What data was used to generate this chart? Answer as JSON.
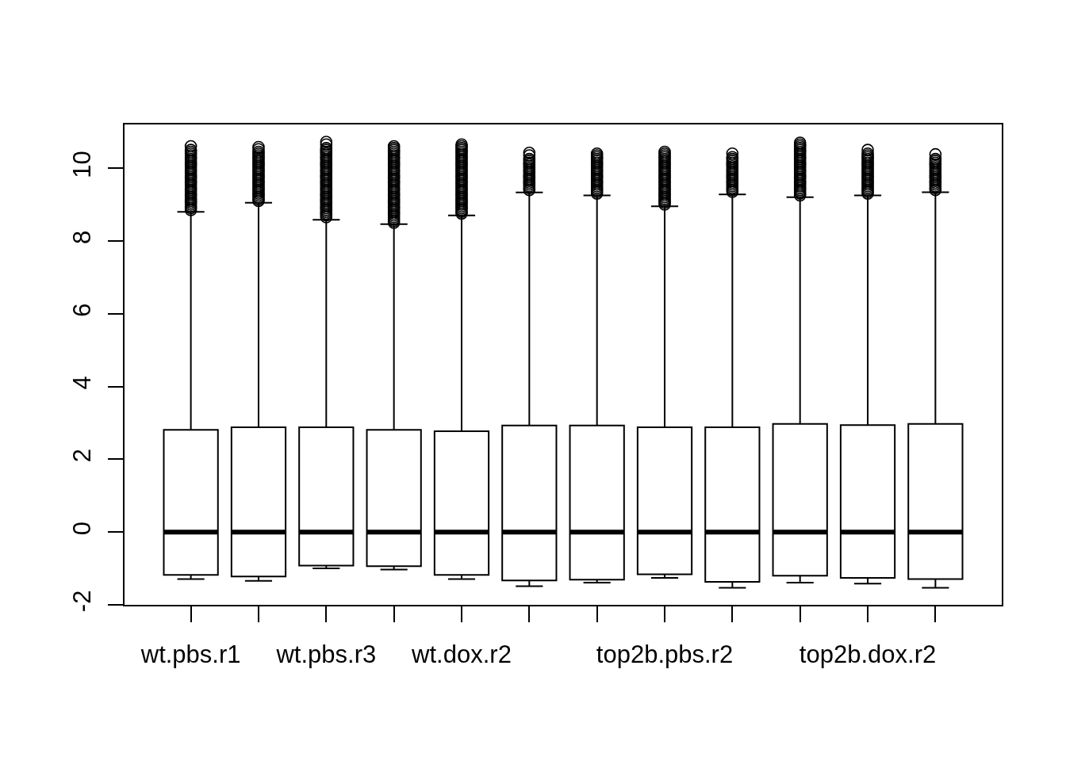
{
  "chart_data": {
    "type": "box",
    "categories": [
      "wt.pbs.r1",
      null,
      "wt.pbs.r3",
      null,
      "wt.dox.r2",
      null,
      null,
      "top2b.pbs.r2",
      null,
      null,
      "top2b.dox.r2",
      null
    ],
    "color": "#000000",
    "boxes": [
      {
        "low": -1.29,
        "q1": -1.18,
        "median": 0,
        "q3": 2.81,
        "high": 8.8,
        "outliers": [
          8.85,
          8.9,
          8.95,
          9,
          9.05,
          9.1,
          9.15,
          9.2,
          9.25,
          9.3,
          9.35,
          9.4,
          9.45,
          9.5,
          9.55,
          9.6,
          9.65,
          9.7,
          9.75,
          9.8,
          9.85,
          9.9,
          9.95,
          10,
          10.05,
          10.1,
          10.15,
          10.2,
          10.25,
          10.3,
          10.35,
          10.4,
          10.45,
          10.5,
          10.6
        ]
      },
      {
        "low": -1.34,
        "q1": -1.22,
        "median": 0,
        "q3": 2.88,
        "high": 9.05,
        "outliers": [
          9.1,
          9.15,
          9.2,
          9.25,
          9.3,
          9.35,
          9.4,
          9.45,
          9.5,
          9.55,
          9.6,
          9.65,
          9.7,
          9.75,
          9.8,
          9.85,
          9.9,
          9.95,
          10,
          10.05,
          10.1,
          10.15,
          10.2,
          10.25,
          10.3,
          10.35,
          10.4,
          10.45,
          10.52,
          10.58
        ]
      },
      {
        "low": -1.0,
        "q1": -0.92,
        "median": 0,
        "q3": 2.88,
        "high": 8.58,
        "outliers": [
          8.65,
          8.7,
          8.75,
          8.8,
          8.85,
          8.9,
          8.95,
          9,
          9.05,
          9.1,
          9.15,
          9.2,
          9.25,
          9.3,
          9.35,
          9.4,
          9.45,
          9.5,
          9.55,
          9.6,
          9.65,
          9.7,
          9.75,
          9.8,
          9.85,
          9.9,
          9.95,
          10,
          10.05,
          10.1,
          10.15,
          10.2,
          10.25,
          10.3,
          10.35,
          10.4,
          10.45,
          10.5,
          10.55,
          10.65,
          10.72
        ]
      },
      {
        "low": -1.03,
        "q1": -0.94,
        "median": 0,
        "q3": 2.81,
        "high": 8.46,
        "outliers": [
          8.5,
          8.55,
          8.6,
          8.65,
          8.7,
          8.75,
          8.8,
          8.85,
          8.9,
          8.95,
          9,
          9.05,
          9.1,
          9.15,
          9.2,
          9.25,
          9.3,
          9.35,
          9.4,
          9.45,
          9.5,
          9.55,
          9.6,
          9.65,
          9.7,
          9.75,
          9.8,
          9.85,
          9.9,
          9.95,
          10,
          10.05,
          10.1,
          10.15,
          10.2,
          10.25,
          10.3,
          10.35,
          10.4,
          10.45,
          10.5,
          10.55,
          10.6
        ]
      },
      {
        "low": -1.29,
        "q1": -1.18,
        "median": 0,
        "q3": 2.77,
        "high": 8.7,
        "outliers": [
          8.75,
          8.8,
          8.85,
          8.9,
          8.95,
          9,
          9.05,
          9.1,
          9.15,
          9.2,
          9.25,
          9.3,
          9.35,
          9.4,
          9.45,
          9.5,
          9.55,
          9.6,
          9.65,
          9.7,
          9.75,
          9.8,
          9.85,
          9.9,
          9.95,
          10,
          10.05,
          10.1,
          10.15,
          10.2,
          10.25,
          10.3,
          10.35,
          10.4,
          10.45,
          10.5,
          10.55,
          10.6,
          10.65
        ]
      },
      {
        "low": -1.49,
        "q1": -1.33,
        "median": 0,
        "q3": 2.93,
        "high": 9.33,
        "outliers": [
          9.4,
          9.45,
          9.5,
          9.55,
          9.6,
          9.65,
          9.7,
          9.75,
          9.8,
          9.85,
          9.9,
          9.95,
          10,
          10.05,
          10.1,
          10.15,
          10.2,
          10.25,
          10.35,
          10.42
        ]
      },
      {
        "low": -1.39,
        "q1": -1.31,
        "median": 0,
        "q3": 2.93,
        "high": 9.25,
        "outliers": [
          9.3,
          9.35,
          9.4,
          9.45,
          9.5,
          9.55,
          9.6,
          9.65,
          9.7,
          9.75,
          9.8,
          9.85,
          9.9,
          9.95,
          10,
          10.05,
          10.1,
          10.15,
          10.2,
          10.25,
          10.3,
          10.35,
          10.4
        ]
      },
      {
        "low": -1.26,
        "q1": -1.16,
        "median": 0,
        "q3": 2.88,
        "high": 8.95,
        "outliers": [
          9,
          9.05,
          9.1,
          9.15,
          9.2,
          9.25,
          9.3,
          9.35,
          9.4,
          9.45,
          9.5,
          9.55,
          9.6,
          9.65,
          9.7,
          9.75,
          9.8,
          9.85,
          9.9,
          9.95,
          10,
          10.05,
          10.1,
          10.15,
          10.2,
          10.25,
          10.3,
          10.35,
          10.4,
          10.45
        ]
      },
      {
        "low": -1.53,
        "q1": -1.37,
        "median": 0,
        "q3": 2.88,
        "high": 9.28,
        "outliers": [
          9.35,
          9.4,
          9.45,
          9.5,
          9.55,
          9.6,
          9.65,
          9.7,
          9.75,
          9.8,
          9.85,
          9.9,
          9.95,
          10,
          10.05,
          10.1,
          10.15,
          10.2,
          10.25,
          10.3,
          10.4
        ]
      },
      {
        "low": -1.39,
        "q1": -1.2,
        "median": 0,
        "q3": 2.97,
        "high": 9.2,
        "outliers": [
          9.25,
          9.3,
          9.35,
          9.4,
          9.45,
          9.5,
          9.55,
          9.6,
          9.65,
          9.7,
          9.75,
          9.8,
          9.85,
          9.9,
          9.95,
          10,
          10.05,
          10.1,
          10.15,
          10.2,
          10.25,
          10.3,
          10.35,
          10.4,
          10.45,
          10.5,
          10.55,
          10.6,
          10.65,
          10.7
        ]
      },
      {
        "low": -1.42,
        "q1": -1.26,
        "median": 0,
        "q3": 2.94,
        "high": 9.25,
        "outliers": [
          9.3,
          9.35,
          9.4,
          9.45,
          9.5,
          9.55,
          9.6,
          9.65,
          9.7,
          9.75,
          9.8,
          9.85,
          9.9,
          9.95,
          10,
          10.05,
          10.1,
          10.15,
          10.2,
          10.25,
          10.3,
          10.35,
          10.4,
          10.5
        ]
      },
      {
        "low": -1.53,
        "q1": -1.29,
        "median": 0,
        "q3": 2.97,
        "high": 9.34,
        "outliers": [
          9.4,
          9.45,
          9.5,
          9.55,
          9.6,
          9.65,
          9.7,
          9.75,
          9.8,
          9.85,
          9.9,
          9.95,
          10,
          10.05,
          10.1,
          10.15,
          10.2,
          10.25,
          10.38
        ]
      }
    ],
    "ylim": [
      -2,
      11.2
    ],
    "yticks": [
      -2,
      0,
      2,
      4,
      6,
      8,
      10
    ]
  }
}
